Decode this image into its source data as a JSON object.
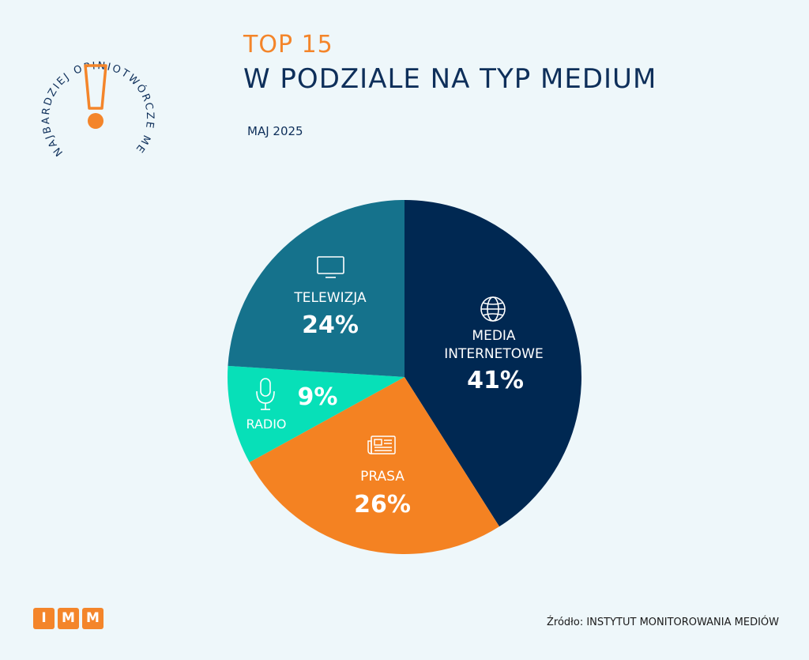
{
  "badge": {
    "ring_text": "NAJBARDZIEJ OPINIOTWÓRCZE MEDIA",
    "exclamation": "!"
  },
  "header": {
    "top": "TOP 15",
    "title": "W PODZIALE NA TYP MEDIUM",
    "date": "MAJ 2025"
  },
  "chart_data": {
    "type": "pie",
    "slices": [
      {
        "name": "MEDIA INTERNETOWE",
        "value": 41,
        "label": "41%",
        "color": "#002852",
        "icon": "globe-icon"
      },
      {
        "name": "PRASA",
        "value": 26,
        "label": "26%",
        "color": "#f48222",
        "icon": "newspaper-icon"
      },
      {
        "name": "RADIO",
        "value": 9,
        "label": "9%",
        "color": "#07e0b8",
        "icon": "microphone-icon"
      },
      {
        "name": "TELEWIZJA",
        "value": 24,
        "label": "24%",
        "color": "#15728c",
        "icon": "tv-icon"
      }
    ],
    "start": "12 o'clock",
    "direction": "clockwise"
  },
  "footer": {
    "logo_letters": [
      "I",
      "M",
      "M"
    ],
    "source": "Źródło: INSTYTUT MONITOROWANIA MEDIÓW"
  }
}
